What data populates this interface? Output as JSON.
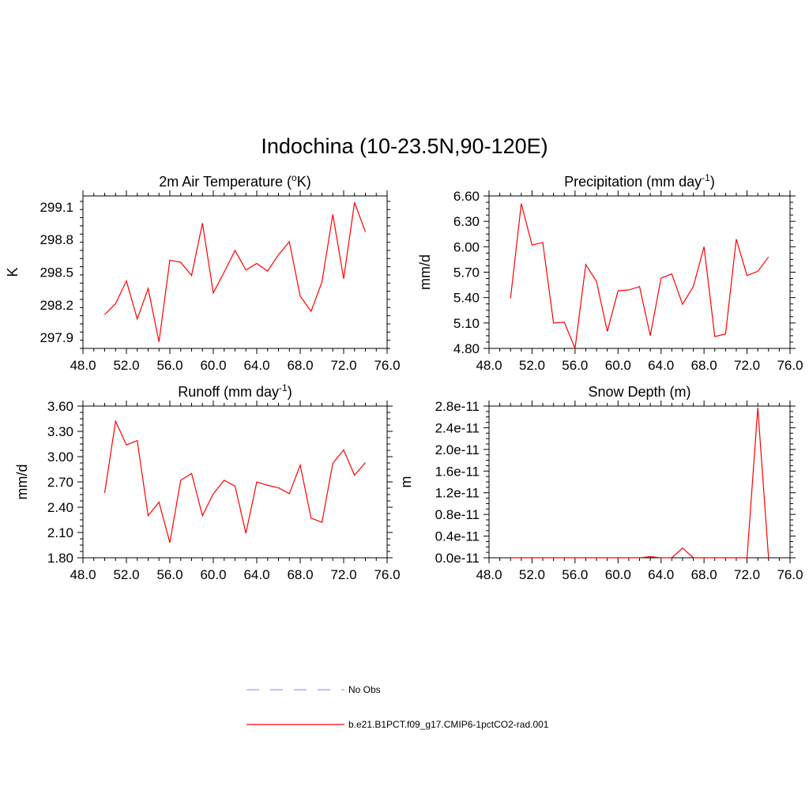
{
  "figure": {
    "title": "Indochina (10-23.5N,90-120E)"
  },
  "legend": {
    "entries": [
      {
        "name": "No Obs",
        "color": "#9999ff",
        "dash": "dashed"
      },
      {
        "name": "b.e21.B1PCT.f09_g17.CMIP6-1pctCO2-rad.001",
        "color": "#ff0000",
        "dash": "solid"
      }
    ]
  },
  "chart_data": [
    {
      "type": "line",
      "title": "2m Air Temperature (",
      "title_sup": "o",
      "title_after": "K)",
      "xlabel": "",
      "ylabel": "K",
      "xlim": [
        48,
        76
      ],
      "ylim": [
        297.8,
        299.2
      ],
      "xticks": [
        "48.0",
        "52.0",
        "56.0",
        "60.0",
        "64.0",
        "68.0",
        "72.0",
        "76.0"
      ],
      "yticks": [
        "297.9",
        "298.2",
        "298.5",
        "298.8",
        "299.1"
      ],
      "grid": false,
      "series": [
        {
          "name": "b.e21.B1PCT.f09_g17.CMIP6-1pctCO2-rad.001",
          "color": "#ff0000",
          "x": [
            50,
            51,
            52,
            53,
            54,
            55,
            56,
            57,
            58,
            59,
            60,
            61,
            62,
            63,
            64,
            65,
            66,
            67,
            68,
            69,
            70,
            71,
            72,
            73,
            74
          ],
          "y": [
            298.11,
            298.21,
            298.42,
            298.07,
            298.35,
            297.86,
            298.61,
            298.59,
            298.47,
            298.95,
            298.31,
            298.5,
            298.7,
            298.52,
            298.58,
            298.51,
            298.66,
            298.78,
            298.28,
            298.14,
            298.41,
            299.03,
            298.44,
            299.14,
            298.87
          ]
        }
      ]
    },
    {
      "type": "line",
      "title": "Precipitation (mm day",
      "title_sup": "-1",
      "title_after": ")",
      "xlabel": "",
      "ylabel": "mm/d",
      "xlim": [
        48,
        76
      ],
      "ylim": [
        4.8,
        6.6
      ],
      "xticks": [
        "48.0",
        "52.0",
        "56.0",
        "60.0",
        "64.0",
        "68.0",
        "72.0",
        "76.0"
      ],
      "yticks": [
        "4.80",
        "5.10",
        "5.40",
        "5.70",
        "6.00",
        "6.30",
        "6.60"
      ],
      "grid": false,
      "series": [
        {
          "name": "b.e21.B1PCT.f09_g17.CMIP6-1pctCO2-rad.001",
          "color": "#ff0000",
          "x": [
            50,
            51,
            52,
            53,
            54,
            55,
            56,
            57,
            58,
            59,
            60,
            61,
            62,
            63,
            64,
            65,
            66,
            67,
            68,
            69,
            70,
            71,
            72,
            73,
            74
          ],
          "y": [
            5.39,
            6.51,
            6.02,
            6.05,
            5.1,
            5.11,
            4.8,
            5.79,
            5.59,
            5.0,
            5.48,
            5.49,
            5.53,
            4.95,
            5.63,
            5.68,
            5.32,
            5.53,
            6.0,
            4.94,
            4.97,
            6.09,
            5.66,
            5.71,
            5.88
          ]
        }
      ]
    },
    {
      "type": "line",
      "title": "Runoff (mm day",
      "title_sup": "-1",
      "title_after": ")",
      "xlabel": "",
      "ylabel": "mm/d",
      "xlim": [
        48,
        76
      ],
      "ylim": [
        1.8,
        3.6
      ],
      "xticks": [
        "48.0",
        "52.0",
        "56.0",
        "60.0",
        "64.0",
        "68.0",
        "72.0",
        "76.0"
      ],
      "yticks": [
        "1.80",
        "2.10",
        "2.40",
        "2.70",
        "3.00",
        "3.30",
        "3.60"
      ],
      "grid": false,
      "series": [
        {
          "name": "b.e21.B1PCT.f09_g17.CMIP6-1pctCO2-rad.001",
          "color": "#ff0000",
          "x": [
            50,
            51,
            52,
            53,
            54,
            55,
            56,
            57,
            58,
            59,
            60,
            61,
            62,
            63,
            64,
            65,
            66,
            67,
            68,
            69,
            70,
            71,
            72,
            73,
            74
          ],
          "y": [
            2.57,
            3.42,
            3.14,
            3.19,
            2.3,
            2.46,
            1.98,
            2.72,
            2.8,
            2.3,
            2.56,
            2.72,
            2.65,
            2.09,
            2.7,
            2.66,
            2.63,
            2.56,
            2.9,
            2.27,
            2.22,
            2.92,
            3.08,
            2.78,
            2.93
          ]
        }
      ]
    },
    {
      "type": "line",
      "title": "Snow Depth (m)",
      "title_sup": "",
      "title_after": "",
      "xlabel": "",
      "ylabel": "m",
      "xlim": [
        48,
        76
      ],
      "ylim": [
        0,
        2.8e-11
      ],
      "xticks": [
        "48.0",
        "52.0",
        "56.0",
        "60.0",
        "64.0",
        "68.0",
        "72.0",
        "76.0"
      ],
      "yticks": [
        "0.0e-11",
        "0.4e-11",
        "0.8e-11",
        "1.2e-11",
        "1.6e-11",
        "2.0e-11",
        "2.4e-11",
        "2.8e-11"
      ],
      "grid": false,
      "series": [
        {
          "name": "b.e21.B1PCT.f09_g17.CMIP6-1pctCO2-rad.001",
          "color": "#ff0000",
          "x": [
            50,
            51,
            52,
            53,
            54,
            55,
            56,
            57,
            58,
            59,
            60,
            61,
            62,
            63,
            64,
            65,
            66,
            67,
            68,
            69,
            70,
            71,
            72,
            73,
            74
          ],
          "y": [
            0,
            0,
            0,
            0,
            0,
            0,
            0,
            0,
            0,
            0,
            0,
            0,
            0,
            2e-13,
            0,
            0,
            1.8e-12,
            0,
            0,
            0,
            0,
            0,
            0,
            2.77e-11,
            0
          ]
        }
      ]
    }
  ]
}
